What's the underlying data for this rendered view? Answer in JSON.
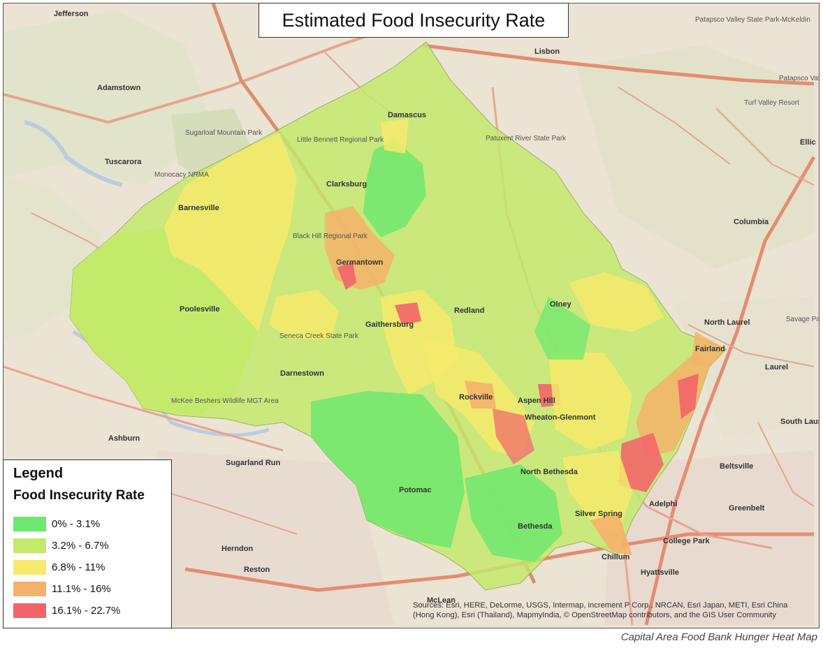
{
  "title": "Estimated Food Insecurity Rate",
  "legend": {
    "title": "Legend",
    "subtitle": "Food Insecurity Rate",
    "items": [
      {
        "label": "0% - 3.1%",
        "color": "#6ee86e"
      },
      {
        "label": "3.2% - 6.7%",
        "color": "#c3ea6a"
      },
      {
        "label": "6.8% - 11%",
        "color": "#f6ea6c"
      },
      {
        "label": "11.1% - 16%",
        "color": "#f5b16a"
      },
      {
        "label": "16.1% - 22.7%",
        "color": "#f2646a"
      }
    ]
  },
  "attribution": "Sources: Esri, HERE, DeLorme, USGS, Intermap, increment P Corp., NRCAN, Esri Japan, METI, Esri China (Hong Kong), Esri (Thailand), MapmyIndia, © OpenStreetMap contributors, and the GIS User Community",
  "caption": "Capital Area Food Bank Hunger Heat Map",
  "places": [
    "Jefferson",
    "Lisbon",
    "Patapsco Valley State Park-McKeldin",
    "Adamstown",
    "Damascus",
    "Sugarloaf Mountain Park",
    "Little Bennett Regional Park",
    "Patuxent River State Park",
    "Tuscarora",
    "Monocacy NRMA",
    "Clarksburg",
    "Barnesville",
    "Black Hill Regional Park",
    "Germantown",
    "Columbia",
    "Poolesville",
    "Gaithersburg",
    "Redland",
    "Olney",
    "North Laurel",
    "Darnestown",
    "Seneca Creek State Park",
    "Fairland",
    "Laurel",
    "Rockville",
    "Aspen Hill",
    "Wheaton-Glenmont",
    "McKee Beshers Wildlife MGT Area",
    "South Laurel",
    "Ashburn",
    "Sugarland Run",
    "North Bethesda",
    "Beltsville",
    "Potomac",
    "Adelphi",
    "Greenbelt",
    "Silver Spring",
    "Bethesda",
    "Herndon",
    "College Park",
    "Reston",
    "Chillum",
    "Hyattsville",
    "McLean",
    "Turf Valley Resort",
    "Patapsco Valley State Park",
    "Ellic",
    "Savage Park"
  ]
}
